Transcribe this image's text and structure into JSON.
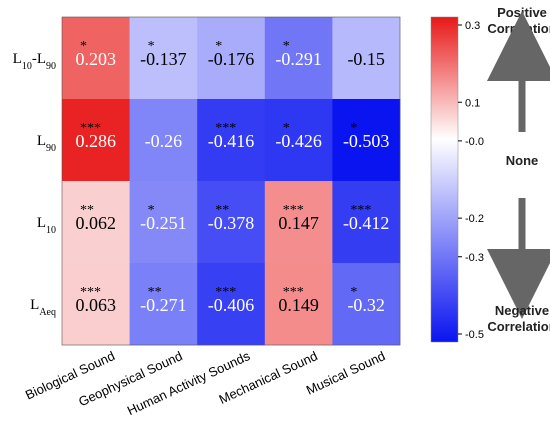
{
  "chart_data": {
    "type": "heatmap",
    "rows": [
      {
        "sub": {
          "base": "L",
          "idx": "10",
          "sep": "-L",
          "idx2": "90"
        },
        "label": "L10-L90"
      },
      {
        "sub": {
          "base": "L",
          "idx": "90"
        },
        "label": "L90"
      },
      {
        "sub": {
          "base": "L",
          "idx": "10"
        },
        "label": "L10"
      },
      {
        "sub": {
          "base": "L",
          "idx": "Aeq"
        },
        "label": "LAeq"
      }
    ],
    "columns": [
      "Biological Sound",
      "Geophysical Sound",
      "Human Activity Sounds",
      "Mechanical Sound",
      "Musical Sound"
    ],
    "values": [
      [
        0.203,
        -0.137,
        -0.176,
        -0.291,
        -0.15
      ],
      [
        0.286,
        -0.26,
        -0.416,
        -0.426,
        -0.503
      ],
      [
        0.062,
        -0.251,
        -0.378,
        0.147,
        -0.412
      ],
      [
        0.063,
        -0.271,
        -0.406,
        0.149,
        -0.32
      ]
    ],
    "value_labels": [
      [
        "0.203",
        "-0.137",
        "-0.176",
        "-0.291",
        "-0.15"
      ],
      [
        "0.286",
        "-0.26",
        "-0.416",
        "-0.426",
        "-0.503"
      ],
      [
        "0.062",
        "-0.251",
        "-0.378",
        "0.147",
        "-0.412"
      ],
      [
        "0.063",
        "-0.271",
        "-0.406",
        "0.149",
        "-0.32"
      ]
    ],
    "significance": [
      [
        "*",
        "*",
        "*",
        "*",
        ""
      ],
      [
        "***",
        "",
        "***",
        "*",
        "*"
      ],
      [
        "**",
        "*",
        "**",
        "***",
        "***"
      ],
      [
        "***",
        "**",
        "***",
        "***",
        "*"
      ]
    ],
    "colorbar": {
      "min": -0.5,
      "max": 0.3,
      "ticks": [
        0.3,
        0.1,
        -0.0,
        -0.2,
        -0.3,
        -0.5
      ],
      "tick_labels": [
        "0.3",
        "0.1",
        "-0.0",
        "-0.2",
        "-0.3",
        "-0.5"
      ],
      "colors": {
        "negative": "#0a14f0",
        "neutral": "#ffffff",
        "positive": "#e81818"
      }
    },
    "annotations": {
      "positive": [
        "Positive",
        "Correlation"
      ],
      "none": "None",
      "negative": [
        "Negative",
        "Correlation"
      ]
    }
  }
}
